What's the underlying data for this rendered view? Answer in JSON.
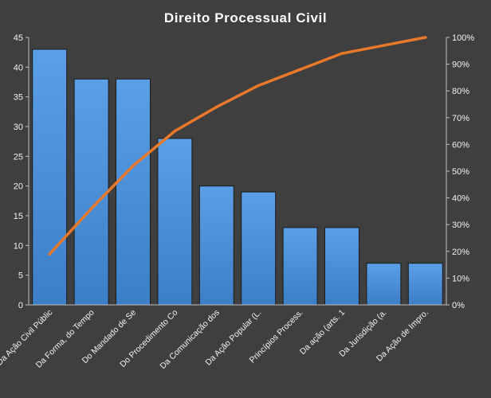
{
  "chart_data": {
    "type": "bar",
    "title": "Direito  Processual  Civil",
    "categories": [
      "Da Ação Civil Públic",
      "Da Forma, do Tempo",
      "Do Mandado de Se",
      "Do Procedimento Co",
      "Da Comunicação dos",
      "Da Ação Popular (L.",
      "Princípios Process.",
      "Da ação (arts. 1",
      "Da Jurisdição (a.",
      "Da Ação de Impro."
    ],
    "values": [
      43,
      38,
      38,
      28,
      20,
      19,
      13,
      13,
      7,
      7
    ],
    "cumulative_percent": [
      19,
      36,
      52,
      65,
      74,
      82,
      88,
      94,
      97,
      100
    ],
    "ylim": [
      0,
      45
    ],
    "y_ticks": [
      0,
      5,
      10,
      15,
      20,
      25,
      30,
      35,
      40,
      45
    ],
    "y2lim": [
      0,
      100
    ],
    "y2_ticks": [
      "0%",
      "10%",
      "20%",
      "30%",
      "40%",
      "50%",
      "60%",
      "70%",
      "80%",
      "90%",
      "100%"
    ],
    "grid": false,
    "colors": {
      "background": "#3f3f3f",
      "bar": "#4a8fd6",
      "bar_edge": "#1a1a1a",
      "line": "#e8782a",
      "axis": "#bfbfbf"
    }
  }
}
